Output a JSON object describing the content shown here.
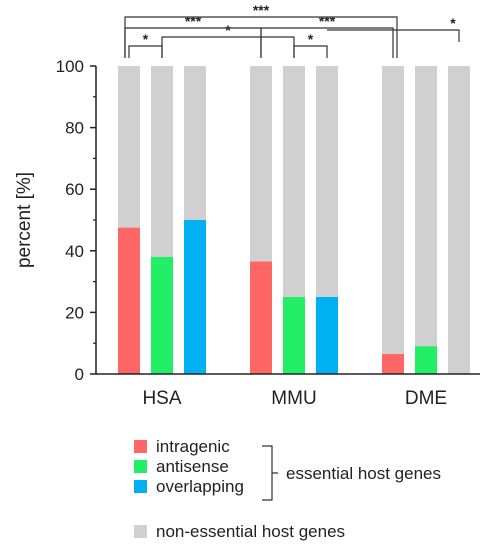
{
  "chart_data": {
    "type": "bar",
    "ylabel": "percent [%]",
    "ylim": [
      0,
      100
    ],
    "yticks": [
      0,
      20,
      40,
      60,
      80,
      100
    ],
    "categories": [
      "HSA",
      "MMU",
      "DME"
    ],
    "stacked_total": 100,
    "series": [
      {
        "name": "intragenic",
        "color": "#ff6666",
        "values": [
          47.5,
          36.5,
          6.5
        ]
      },
      {
        "name": "antisense",
        "color": "#22ee66",
        "values": [
          38,
          25,
          9
        ]
      },
      {
        "name": "overlapping",
        "color": "#00b0f0",
        "values": [
          50,
          25,
          0
        ]
      }
    ],
    "background_series": {
      "name": "non-essential host genes",
      "color": "#d0d0d0"
    },
    "legend_group_label": "essential host genes",
    "significance": [
      {
        "from": [
          0,
          0
        ],
        "to": [
          0,
          1
        ],
        "label": "*"
      },
      {
        "from": [
          0,
          1
        ],
        "to": [
          1,
          1
        ],
        "label": "*"
      },
      {
        "from": [
          0,
          0
        ],
        "to": [
          1,
          0
        ],
        "label": "***"
      },
      {
        "from": [
          1,
          1
        ],
        "to": [
          1,
          2
        ],
        "label": "*"
      },
      {
        "from": [
          1,
          0
        ],
        "to": [
          2,
          0
        ],
        "label": "***"
      },
      {
        "from": [
          0,
          0
        ],
        "to": [
          2,
          0
        ],
        "label": "***"
      },
      {
        "from": [
          1,
          2
        ],
        "to": [
          2,
          2
        ],
        "label": "*"
      }
    ]
  }
}
